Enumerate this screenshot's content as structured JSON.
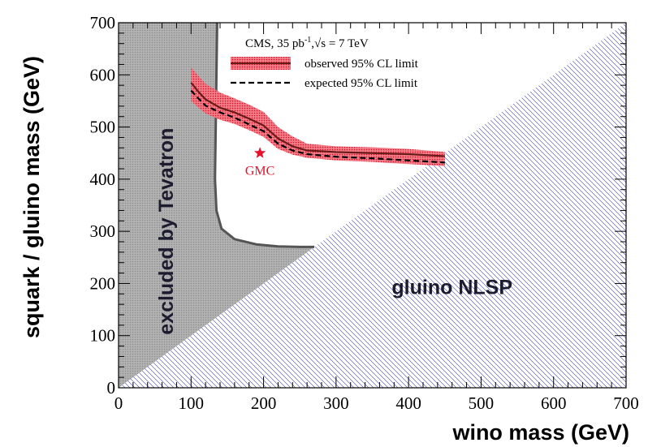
{
  "chart_data": {
    "type": "line",
    "xlabel": "wino mass (GeV)",
    "ylabel": "squark / gluino mass (GeV)",
    "xlim": [
      0,
      700
    ],
    "ylim": [
      0,
      700
    ],
    "xticks": [
      "0",
      "100",
      "200",
      "300",
      "400",
      "500",
      "600",
      "700"
    ],
    "yticks": [
      "0",
      "100",
      "200",
      "300",
      "400",
      "500",
      "600",
      "700"
    ],
    "legend": {
      "header_main": "CMS, 35 pb",
      "header_sup": "-1",
      "header_sqrt": "√s = 7 TeV",
      "observed": "observed 95% CL limit",
      "expected": "expected 95% CL limit"
    },
    "series": [
      {
        "name": "observed 95% CL limit",
        "color": "#6b1a1a",
        "x": [
          100,
          110,
          120,
          140,
          160,
          180,
          200,
          220,
          240,
          260,
          300,
          350,
          400,
          450
        ],
        "y": [
          585,
          568,
          553,
          537,
          528,
          516,
          503,
          478,
          463,
          455,
          452,
          450,
          448,
          444
        ]
      },
      {
        "name": "expected 95% CL limit",
        "color": "#000000",
        "style": "dashed",
        "x": [
          100,
          110,
          120,
          140,
          160,
          180,
          200,
          220,
          240,
          260,
          300,
          350,
          400,
          450
        ],
        "y": [
          570,
          555,
          541,
          528,
          518,
          505,
          492,
          468,
          455,
          448,
          443,
          440,
          436,
          432
        ]
      }
    ],
    "band": {
      "name": "observed 95% CL limit band",
      "color": "#e8102a",
      "x": [
        100,
        110,
        120,
        140,
        160,
        180,
        200,
        220,
        240,
        260,
        300,
        350,
        400,
        450
      ],
      "upper": [
        615,
        598,
        583,
        566,
        555,
        543,
        529,
        500,
        482,
        468,
        463,
        461,
        458,
        452
      ],
      "lower": [
        550,
        537,
        526,
        514,
        506,
        494,
        481,
        458,
        447,
        441,
        436,
        433,
        429,
        425
      ]
    },
    "tevatron_boundary": {
      "name": "excluded by Tevatron",
      "color": "#555555",
      "x": [
        136,
        135,
        134,
        133,
        135,
        142,
        160,
        190,
        220,
        250,
        270
      ],
      "y": [
        700,
        600,
        500,
        400,
        340,
        305,
        285,
        275,
        271,
        270,
        270
      ]
    },
    "gluino_nlsp_boundary": {
      "name": "gluino NLSP",
      "x": [
        0,
        700
      ],
      "y": [
        0,
        700
      ]
    },
    "marker": {
      "label": "GMC",
      "x": 195,
      "y": 450,
      "color": "#e8102a"
    },
    "annotations": {
      "tevatron": "excluded by Tevatron",
      "nlsp": "gluino NLSP"
    }
  }
}
